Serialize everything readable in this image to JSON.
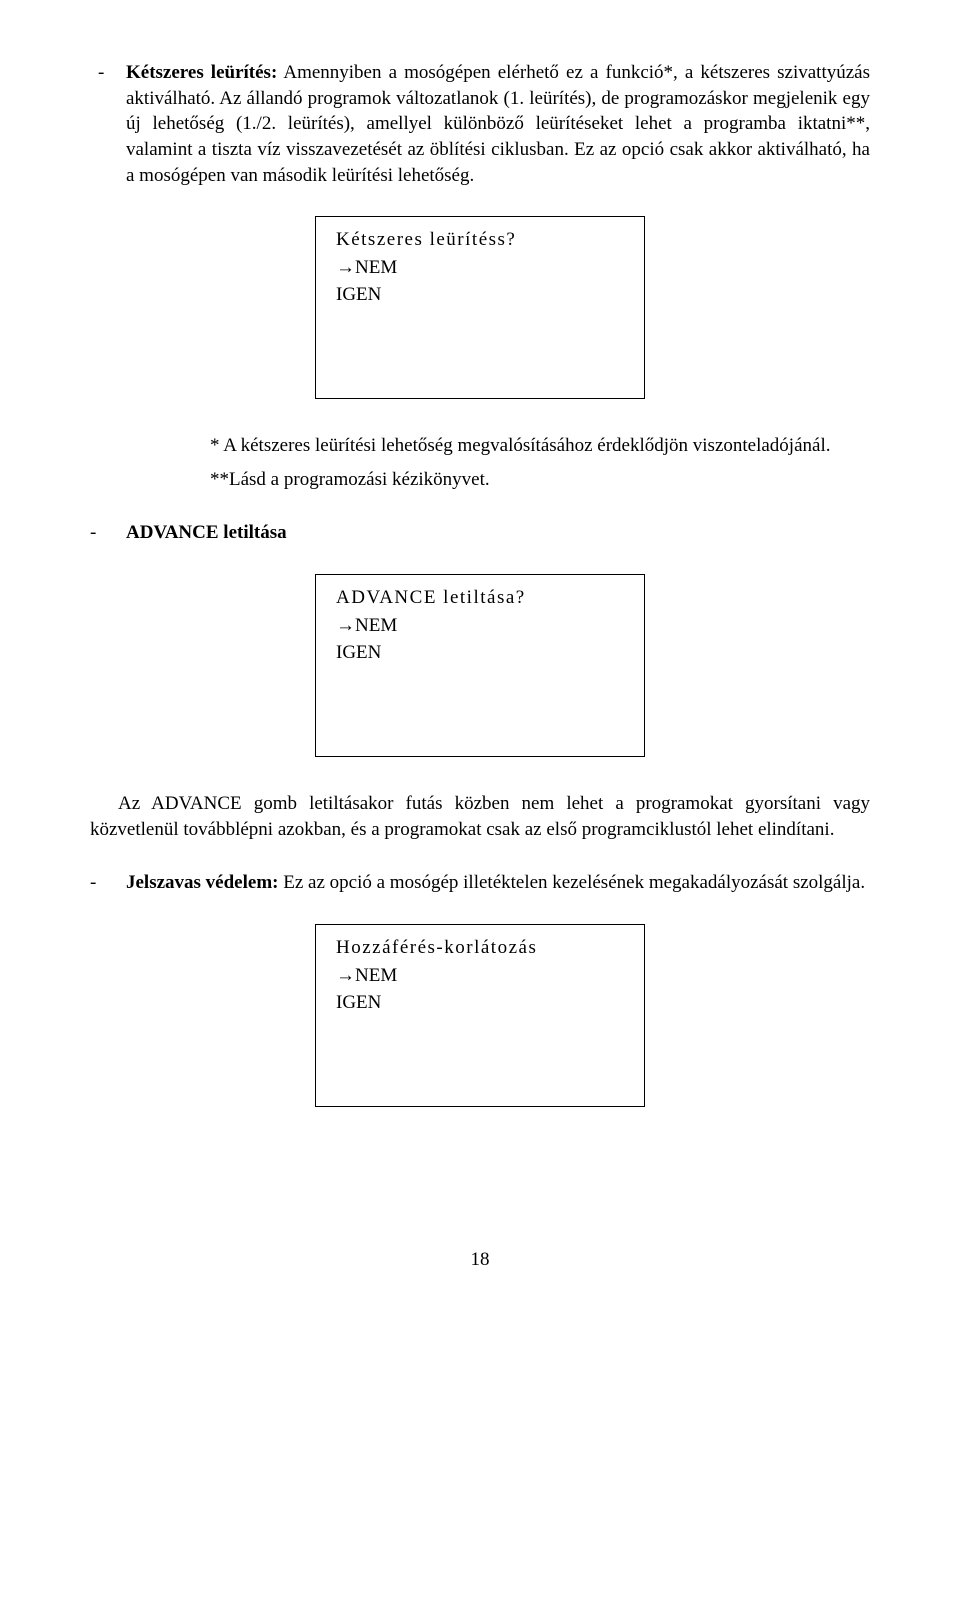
{
  "section1": {
    "bullet": "-",
    "title_bold": "Kétszeres leürítés:",
    "title_rest": " Amennyiben a mosógépen elérhető ez a funkció*, a kétszeres szivattyúzás aktiválható. Az állandó programok változatlanok (1. leürítés), de programozáskor megjelenik egy új lehetőség (1./2. leürítés), amellyel különböző leürítéseket lehet a programba iktatni**, valamint a tiszta víz visszavezetését az öblítési ciklusban. Ez az opció csak akkor aktiválható, ha a mosógépen van második leürítési lehetőség."
  },
  "box1": {
    "line1": "Kétszeres leürítéss?",
    "line2": "→NEM",
    "line3": "IGEN"
  },
  "note1": "* A kétszeres leürítési lehetőség megvalósításához érdeklődjön viszonteladójánál.",
  "note2": "**Lásd a programozási kézikönyvet.",
  "section2": {
    "bullet": "-",
    "title_bold": "ADVANCE letiltása"
  },
  "box2": {
    "line1": "ADVANCE letiltása?",
    "line2": "→NEM",
    "line3": "IGEN"
  },
  "para_advance": "Az ADVANCE gomb letiltásakor futás közben nem lehet a programokat gyorsítani vagy közvetlenül továbblépni azokban, és a programokat csak az első programciklustól lehet elindítani.",
  "section3": {
    "bullet": "-",
    "title_bold": "Jelszavas védelem:",
    "title_rest": " Ez az opció a mosógép illetéktelen kezelésének megakadályozását szolgálja."
  },
  "box3": {
    "line1": "Hozzáférés-korlátozás",
    "line2": "→NEM",
    "line3": "IGEN"
  },
  "page_number": "18"
}
